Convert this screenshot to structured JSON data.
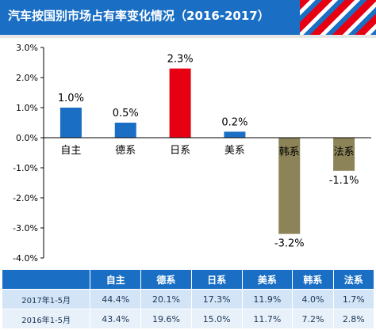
{
  "title": "汽车按国别市场占有率变化情况（2016-2017）",
  "colors": {
    "header_bg": "#1a6fc4",
    "bar_default": "#1a6fc4",
    "bar_japan": "#e60012",
    "bar_negative": "#8c8458",
    "table_header": "#1a6fc4",
    "table_row": "#d2e4f6"
  },
  "chart_data": {
    "type": "bar",
    "categories": [
      "自主",
      "德系",
      "日系",
      "美系",
      "韩系",
      "法系"
    ],
    "values": [
      1.0,
      0.5,
      2.3,
      0.2,
      -3.2,
      -1.1
    ],
    "value_labels": [
      "1.0%",
      "0.5%",
      "2.3%",
      "0.2%",
      "-3.2%",
      "-1.1%"
    ],
    "ylim": [
      -4.0,
      3.0
    ],
    "yticks": [
      3.0,
      2.0,
      1.0,
      0.0,
      -1.0,
      -2.0,
      -3.0,
      -4.0
    ],
    "ytick_labels": [
      "3.0%",
      "2.0%",
      "1.0%",
      "0.0%",
      "-1.0%",
      "-2.0%",
      "-3.0%",
      "-4.0%"
    ],
    "bar_colors": [
      "#1a6fc4",
      "#1a6fc4",
      "#e60012",
      "#1a6fc4",
      "#8c8458",
      "#8c8458"
    ],
    "grid": false,
    "xlabel": "",
    "ylabel": ""
  },
  "table": {
    "columns": [
      "",
      "自主",
      "德系",
      "日系",
      "美系",
      "韩系",
      "法系"
    ],
    "rows": [
      [
        "2017年1-5月",
        "44.4%",
        "20.1%",
        "17.3%",
        "11.9%",
        "4.0%",
        "1.7%"
      ],
      [
        "2016年1-5月",
        "43.4%",
        "19.6%",
        "15.0%",
        "11.7%",
        "7.2%",
        "2.8%"
      ]
    ]
  }
}
